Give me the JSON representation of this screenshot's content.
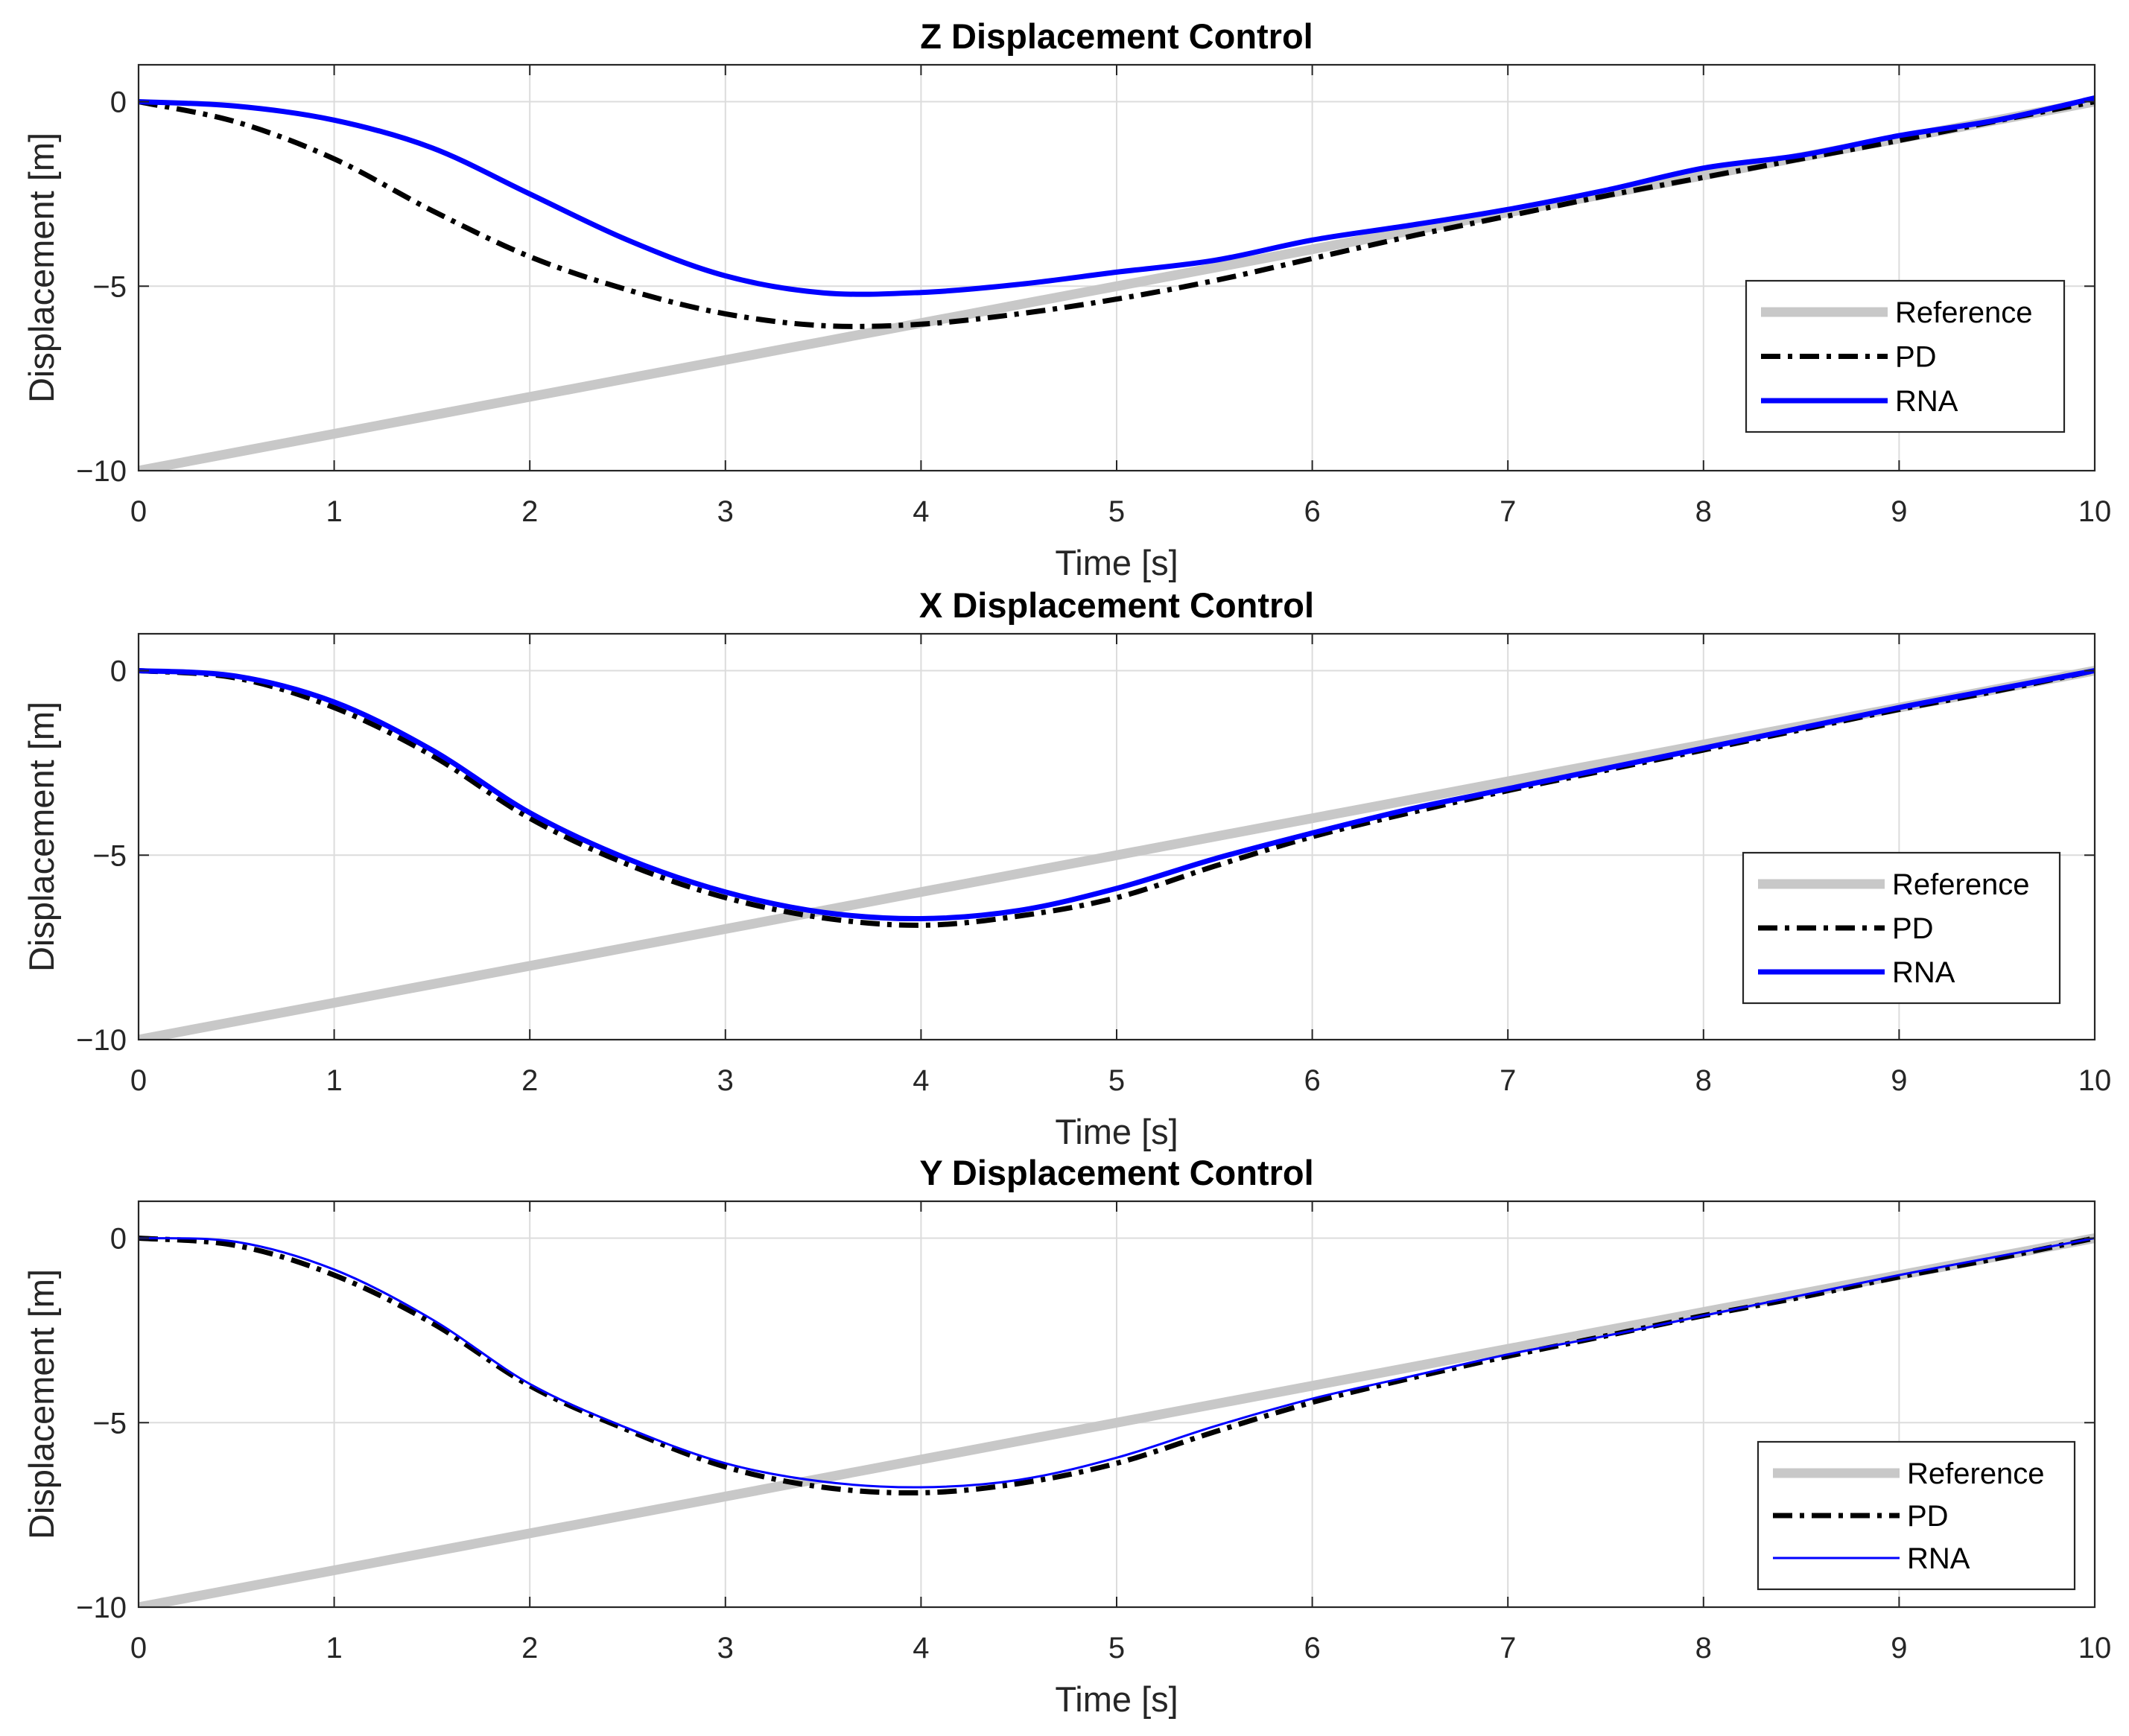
{
  "chart_data": [
    {
      "type": "line",
      "title": "Z Displacement Control",
      "xlabel": "Time [s]",
      "ylabel": "Displacement [m]",
      "xlim": [
        0,
        10
      ],
      "ylim": [
        -10,
        1
      ],
      "xticks": [
        0,
        1,
        2,
        3,
        4,
        5,
        6,
        7,
        8,
        9,
        10
      ],
      "yticks": [
        -10,
        -5,
        0
      ],
      "ytick_labels": [
        "−10",
        "−5",
        "0"
      ],
      "grid": true,
      "legend": "bottom-right",
      "x": [
        0,
        0.5,
        1,
        1.5,
        2,
        2.5,
        3,
        3.5,
        4,
        4.5,
        5,
        5.5,
        6,
        6.5,
        7,
        7.5,
        8,
        8.5,
        9,
        9.5,
        10
      ],
      "series": [
        {
          "name": "Reference",
          "color": "#c8c8c8",
          "line_style": "solid",
          "values": [
            -10,
            -9.5,
            -9,
            -8.5,
            -8,
            -7.5,
            -7,
            -6.5,
            -6,
            -5.5,
            -5,
            -4.5,
            -4,
            -3.5,
            -3,
            -2.5,
            -2,
            -1.5,
            -1,
            -0.5,
            0
          ]
        },
        {
          "name": "PD",
          "color": "#000000",
          "line_style": "dash-dot",
          "values": [
            0,
            -0.55,
            -1.55,
            -2.95,
            -4.2,
            -5.1,
            -5.75,
            -6.07,
            -6.03,
            -5.75,
            -5.35,
            -4.85,
            -4.25,
            -3.65,
            -3.1,
            -2.55,
            -2.05,
            -1.55,
            -1.05,
            -0.52,
            0
          ]
        },
        {
          "name": "RNA",
          "color": "#0000ff",
          "line_style": "solid",
          "values": [
            0,
            -0.12,
            -0.5,
            -1.25,
            -2.5,
            -3.75,
            -4.72,
            -5.18,
            -5.17,
            -4.95,
            -4.62,
            -4.3,
            -3.75,
            -3.35,
            -2.92,
            -2.4,
            -1.8,
            -1.45,
            -0.92,
            -0.5,
            0.1
          ]
        }
      ]
    },
    {
      "type": "line",
      "title": "X Displacement Control",
      "xlabel": "Time [s]",
      "ylabel": "Displacement [m]",
      "xlim": [
        0,
        10
      ],
      "ylim": [
        -10,
        1
      ],
      "xticks": [
        0,
        1,
        2,
        3,
        4,
        5,
        6,
        7,
        8,
        9,
        10
      ],
      "yticks": [
        -10,
        -5,
        0
      ],
      "ytick_labels": [
        "−10",
        "−5",
        "0"
      ],
      "grid": true,
      "legend": "bottom-right",
      "x": [
        0,
        0.5,
        1,
        1.5,
        2,
        2.5,
        3,
        3.5,
        4,
        4.5,
        5,
        5.5,
        6,
        6.5,
        7,
        7.5,
        8,
        8.5,
        9,
        9.5,
        10
      ],
      "series": [
        {
          "name": "Reference",
          "color": "#c8c8c8",
          "line_style": "solid",
          "values": [
            -10,
            -9.5,
            -9,
            -8.5,
            -8,
            -7.5,
            -7,
            -6.5,
            -6,
            -5.5,
            -5,
            -4.5,
            -4,
            -3.5,
            -3,
            -2.5,
            -2,
            -1.5,
            -1,
            -0.5,
            0
          ]
        },
        {
          "name": "PD",
          "color": "#000000",
          "line_style": "dash-dot",
          "values": [
            0,
            -0.2,
            -1.0,
            -2.3,
            -4.0,
            -5.25,
            -6.15,
            -6.7,
            -6.9,
            -6.65,
            -6.15,
            -5.3,
            -4.5,
            -3.85,
            -3.25,
            -2.7,
            -2.15,
            -1.6,
            -1.05,
            -0.55,
            0
          ]
        },
        {
          "name": "RNA",
          "color": "#0000ff",
          "line_style": "solid",
          "values": [
            0,
            -0.15,
            -0.85,
            -2.15,
            -3.85,
            -5.1,
            -6.0,
            -6.55,
            -6.72,
            -6.5,
            -5.9,
            -5.1,
            -4.4,
            -3.75,
            -3.2,
            -2.65,
            -2.1,
            -1.55,
            -1.0,
            -0.5,
            0
          ]
        }
      ]
    },
    {
      "type": "line",
      "title": "Y Displacement Control",
      "xlabel": "Time [s]",
      "ylabel": "Displacement [m]",
      "xlim": [
        0,
        10
      ],
      "ylim": [
        -10,
        1
      ],
      "xticks": [
        0,
        1,
        2,
        3,
        4,
        5,
        6,
        7,
        8,
        9,
        10
      ],
      "yticks": [
        -10,
        -5,
        0
      ],
      "ytick_labels": [
        "−10",
        "−5",
        "0"
      ],
      "grid": true,
      "legend": "bottom-right",
      "x": [
        0,
        0.5,
        1,
        1.5,
        2,
        2.5,
        3,
        3.5,
        4,
        4.5,
        5,
        5.5,
        6,
        6.5,
        7,
        7.5,
        8,
        8.5,
        9,
        9.5,
        10
      ],
      "series": [
        {
          "name": "Reference",
          "color": "#c8c8c8",
          "line_style": "solid",
          "values": [
            -10,
            -9.5,
            -9,
            -8.5,
            -8,
            -7.5,
            -7,
            -6.5,
            -6,
            -5.5,
            -5,
            -4.5,
            -4,
            -3.5,
            -3,
            -2.5,
            -2,
            -1.5,
            -1,
            -0.5,
            0
          ]
        },
        {
          "name": "PD",
          "color": "#000000",
          "line_style": "dash-dot",
          "values": [
            0,
            -0.2,
            -1.0,
            -2.3,
            -4.0,
            -5.2,
            -6.2,
            -6.75,
            -6.9,
            -6.65,
            -6.1,
            -5.25,
            -4.45,
            -3.8,
            -3.2,
            -2.65,
            -2.1,
            -1.6,
            -1.05,
            -0.55,
            0
          ]
        },
        {
          "name": "RNA",
          "color": "#0000ff",
          "line_style": "solid",
          "values": [
            0,
            -0.1,
            -0.85,
            -2.2,
            -3.95,
            -5.15,
            -6.1,
            -6.6,
            -6.75,
            -6.55,
            -5.95,
            -5.1,
            -4.35,
            -3.75,
            -3.15,
            -2.65,
            -2.1,
            -1.55,
            -1.0,
            -0.5,
            0
          ]
        }
      ]
    }
  ]
}
